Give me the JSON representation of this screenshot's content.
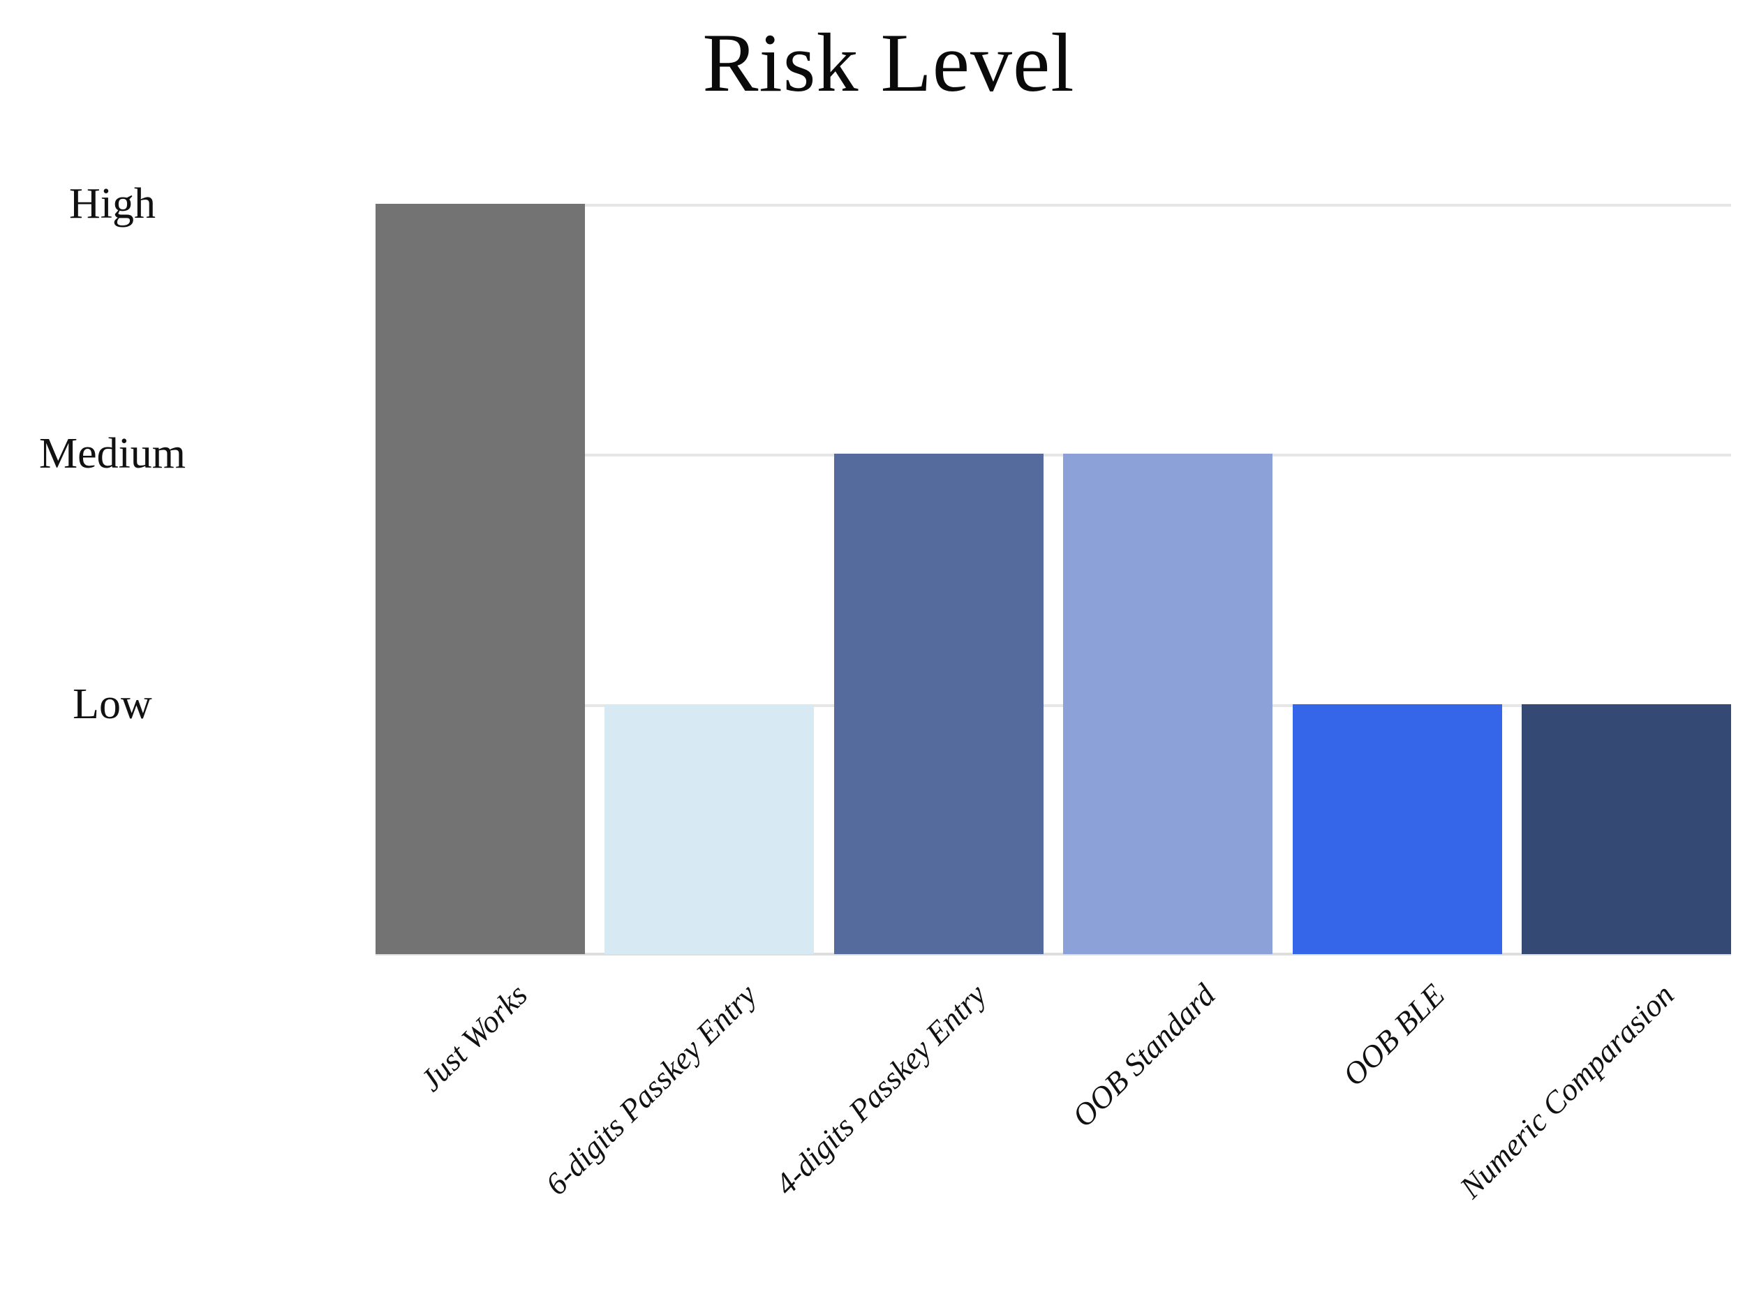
{
  "chart_data": {
    "type": "bar",
    "title": "Risk Level",
    "categories": [
      "Just Works",
      "6-digits Passkey Entry",
      "4-digits Passkey Entry",
      "OOB Standard",
      "OOB BLE",
      "Numeric Comparasion"
    ],
    "values": [
      "High",
      "Low",
      "Medium",
      "Medium",
      "Low",
      "Low"
    ],
    "numeric_values": [
      3,
      1,
      2,
      2,
      1,
      1
    ],
    "value_scale": {
      "Low": 1,
      "Medium": 2,
      "High": 3
    },
    "yticks": [
      "High",
      "Medium",
      "Low"
    ],
    "ylim": [
      0,
      3
    ],
    "xlabel": "",
    "ylabel": "",
    "grid": true,
    "legend": false,
    "bar_colors": [
      "#737373",
      "#d7e9f2",
      "#556a9d",
      "#8ba1d8",
      "#3565e9",
      "#344973"
    ],
    "colors": {
      "background": "#ffffff",
      "gridline": "#e6e6e6",
      "axis_line": "#dedede",
      "text": "#111111"
    }
  }
}
